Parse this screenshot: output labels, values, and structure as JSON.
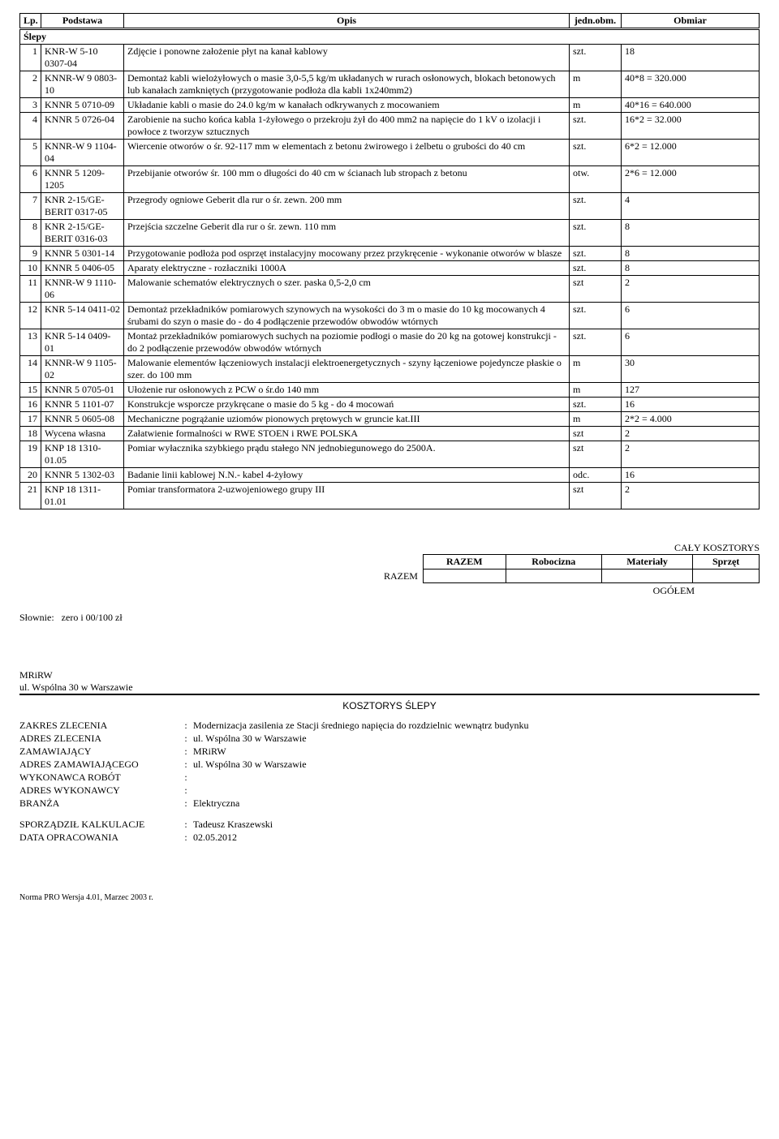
{
  "columns": {
    "lp": "Lp.",
    "podstawa": "Podstawa",
    "opis": "Opis",
    "jedn": "jedn.obm.",
    "obmiar": "Obmiar"
  },
  "group": "Ślepy",
  "rows": [
    {
      "lp": "1",
      "pod": "KNR-W 5-10 0307-04",
      "opis": "Zdjęcie i ponowne założenie płyt na kanał kablowy",
      "jedn": "szt.",
      "obm": "18"
    },
    {
      "lp": "2",
      "pod": "KNNR-W 9 0803-10",
      "opis": "Demontaż kabli wielożyłowych o masie 3,0-5,5 kg/m układanych w rurach osłonowych, blokach betonowych lub kanałach zamkniętych (przygotowanie podłoża dla kabli 1x240mm2)",
      "jedn": "m",
      "obm": "40*8 = 320.000"
    },
    {
      "lp": "3",
      "pod": "KNNR 5 0710-09",
      "opis": "Układanie kabli o masie do 24.0 kg/m w kanałach odkrywanych z mocowaniem",
      "jedn": "m",
      "obm": "40*16 = 640.000"
    },
    {
      "lp": "4",
      "pod": "KNNR 5 0726-04",
      "opis": "Zarobienie na sucho końca kabla 1-żyłowego o przekroju żył do 400 mm2 na napięcie do 1 kV o izolacji i powłoce z tworzyw sztucznych",
      "jedn": "szt.",
      "obm": "16*2 = 32.000"
    },
    {
      "lp": "5",
      "pod": "KNNR-W 9 1104-04",
      "opis": "Wiercenie otworów o śr. 92-117 mm w elementach z betonu żwirowego i żelbetu o grubości do 40 cm",
      "jedn": "szt.",
      "obm": "6*2 = 12.000"
    },
    {
      "lp": "6",
      "pod": "KNNR 5 1209-1205",
      "opis": "Przebijanie otworów śr. 100 mm o długości do 40 cm w ścianach lub stropach z betonu",
      "jedn": "otw.",
      "obm": "2*6 = 12.000"
    },
    {
      "lp": "7",
      "pod": "KNR 2-15/GE-BERIT 0317-05",
      "opis": "Przegrody ogniowe Geberit dla rur o śr. zewn. 200 mm",
      "jedn": "szt.",
      "obm": "4"
    },
    {
      "lp": "8",
      "pod": "KNR 2-15/GE-BERIT 0316-03",
      "opis": "Przejścia szczelne Geberit dla rur o śr. zewn. 110 mm",
      "jedn": "szt.",
      "obm": "8"
    },
    {
      "lp": "9",
      "pod": "KNNR 5 0301-14",
      "opis": "Przygotowanie podłoża pod osprzęt instalacyjny mocowany przez przykręcenie - wykonanie otworów w blasze",
      "jedn": "szt.",
      "obm": "8"
    },
    {
      "lp": "10",
      "pod": "KNNR 5 0406-05",
      "opis": "Aparaty elektryczne - rozłaczniki 1000A",
      "jedn": "szt.",
      "obm": "8"
    },
    {
      "lp": "11",
      "pod": "KNNR-W 9 1110-06",
      "opis": "Malowanie schematów elektrycznych o szer. paska 0,5-2,0 cm",
      "jedn": "szt",
      "obm": "2"
    },
    {
      "lp": "12",
      "pod": "KNR 5-14 0411-02",
      "opis": "Demontaż przekładników pomiarowych szynowych na wysokości do 3 m o masie do 10 kg mocowanych 4 śrubami do szyn o masie do - do 4 podłączenie przewodów obwodów wtórnych",
      "jedn": "szt.",
      "obm": "6"
    },
    {
      "lp": "13",
      "pod": "KNR 5-14 0409-01",
      "opis": "Montaż przekładników pomiarowych suchych na poziomie podłogi o masie do 20 kg na gotowej konstrukcji - do 2 podłączenie przewodów obwodów wtórnych",
      "jedn": "szt.",
      "obm": "6"
    },
    {
      "lp": "14",
      "pod": "KNNR-W 9 1105-02",
      "opis": "Malowanie elementów łączeniowych instalacji elektroenergetycznych - szyny łączeniowe pojedyncze płaskie o szer. do 100 mm",
      "jedn": "m",
      "obm": "30"
    },
    {
      "lp": "15",
      "pod": "KNNR 5 0705-01",
      "opis": "Ułożenie rur osłonowych z PCW o śr.do 140 mm",
      "jedn": "m",
      "obm": "127"
    },
    {
      "lp": "16",
      "pod": "KNNR 5 1101-07",
      "opis": "Konstrukcje wsporcze przykręcane o masie do 5 kg - do 4 mocowań",
      "jedn": "szt.",
      "obm": "16"
    },
    {
      "lp": "17",
      "pod": "KNNR 5 0605-08",
      "opis": "Mechaniczne pogrążanie uziomów pionowych prętowych w gruncie kat.III",
      "jedn": "m",
      "obm": "2*2 = 4.000"
    },
    {
      "lp": "18",
      "pod": "Wycena własna",
      "opis": "Załatwienie formalności w RWE STOEN i RWE POLSKA",
      "jedn": "szt",
      "obm": "2"
    },
    {
      "lp": "19",
      "pod": "KNP 18 1310-01.05",
      "opis": "Pomiar wyłacznika szybkiego prądu stałego NN jednobiegunowego do 2500A.",
      "jedn": "szt",
      "obm": "2"
    },
    {
      "lp": "20",
      "pod": "KNNR 5 1302-03",
      "opis": "Badanie linii kablowej N.N.- kabel 4-żyłowy",
      "jedn": "odc.",
      "obm": "16"
    },
    {
      "lp": "21",
      "pod": "KNP 18 1311-01.01",
      "opis": "Pomiar transformatora 2-uzwojeniowego grupy III",
      "jedn": "szt",
      "obm": "2"
    }
  ],
  "summary": {
    "title": "CAŁY KOSZTORYS",
    "headers": [
      "RAZEM",
      "Robocizna",
      "Materiały",
      "Sprzęt"
    ],
    "rowLabel": "RAZEM",
    "ogolem": "OGÓŁEM"
  },
  "slownie": {
    "label": "Słownie:",
    "value": "zero i 00/100 zł"
  },
  "org": {
    "name": "MRiRW",
    "addr": "ul. Wspólna 30 w Warszawie"
  },
  "sectionTitle": "KOSZTORYS ŚLEPY",
  "meta": [
    {
      "label": "ZAKRES ZLECENIA",
      "value": "Modernizacja zasilenia ze Stacji średniego napięcia do rozdzielnic wewnątrz budynku"
    },
    {
      "label": "ADRES ZLECENIA",
      "value": "ul. Wspólna 30 w Warszawie"
    },
    {
      "label": "ZAMAWIAJĄCY",
      "value": "MRiRW"
    },
    {
      "label": "ADRES ZAMAWIAJĄCEGO",
      "value": "ul. Wspólna 30 w Warszawie"
    },
    {
      "label": "WYKONAWCA ROBÓT",
      "value": ""
    },
    {
      "label": "ADRES WYKONAWCY",
      "value": ""
    },
    {
      "label": "BRANŻA",
      "value": "Elektryczna"
    }
  ],
  "meta2": [
    {
      "label": "SPORZĄDZIŁ KALKULACJE",
      "value": "Tadeusz Kraszewski"
    },
    {
      "label": "DATA OPRACOWANIA",
      "value": "02.05.2012"
    }
  ],
  "footer": "Norma PRO Wersja 4.01, Marzec 2003 r."
}
